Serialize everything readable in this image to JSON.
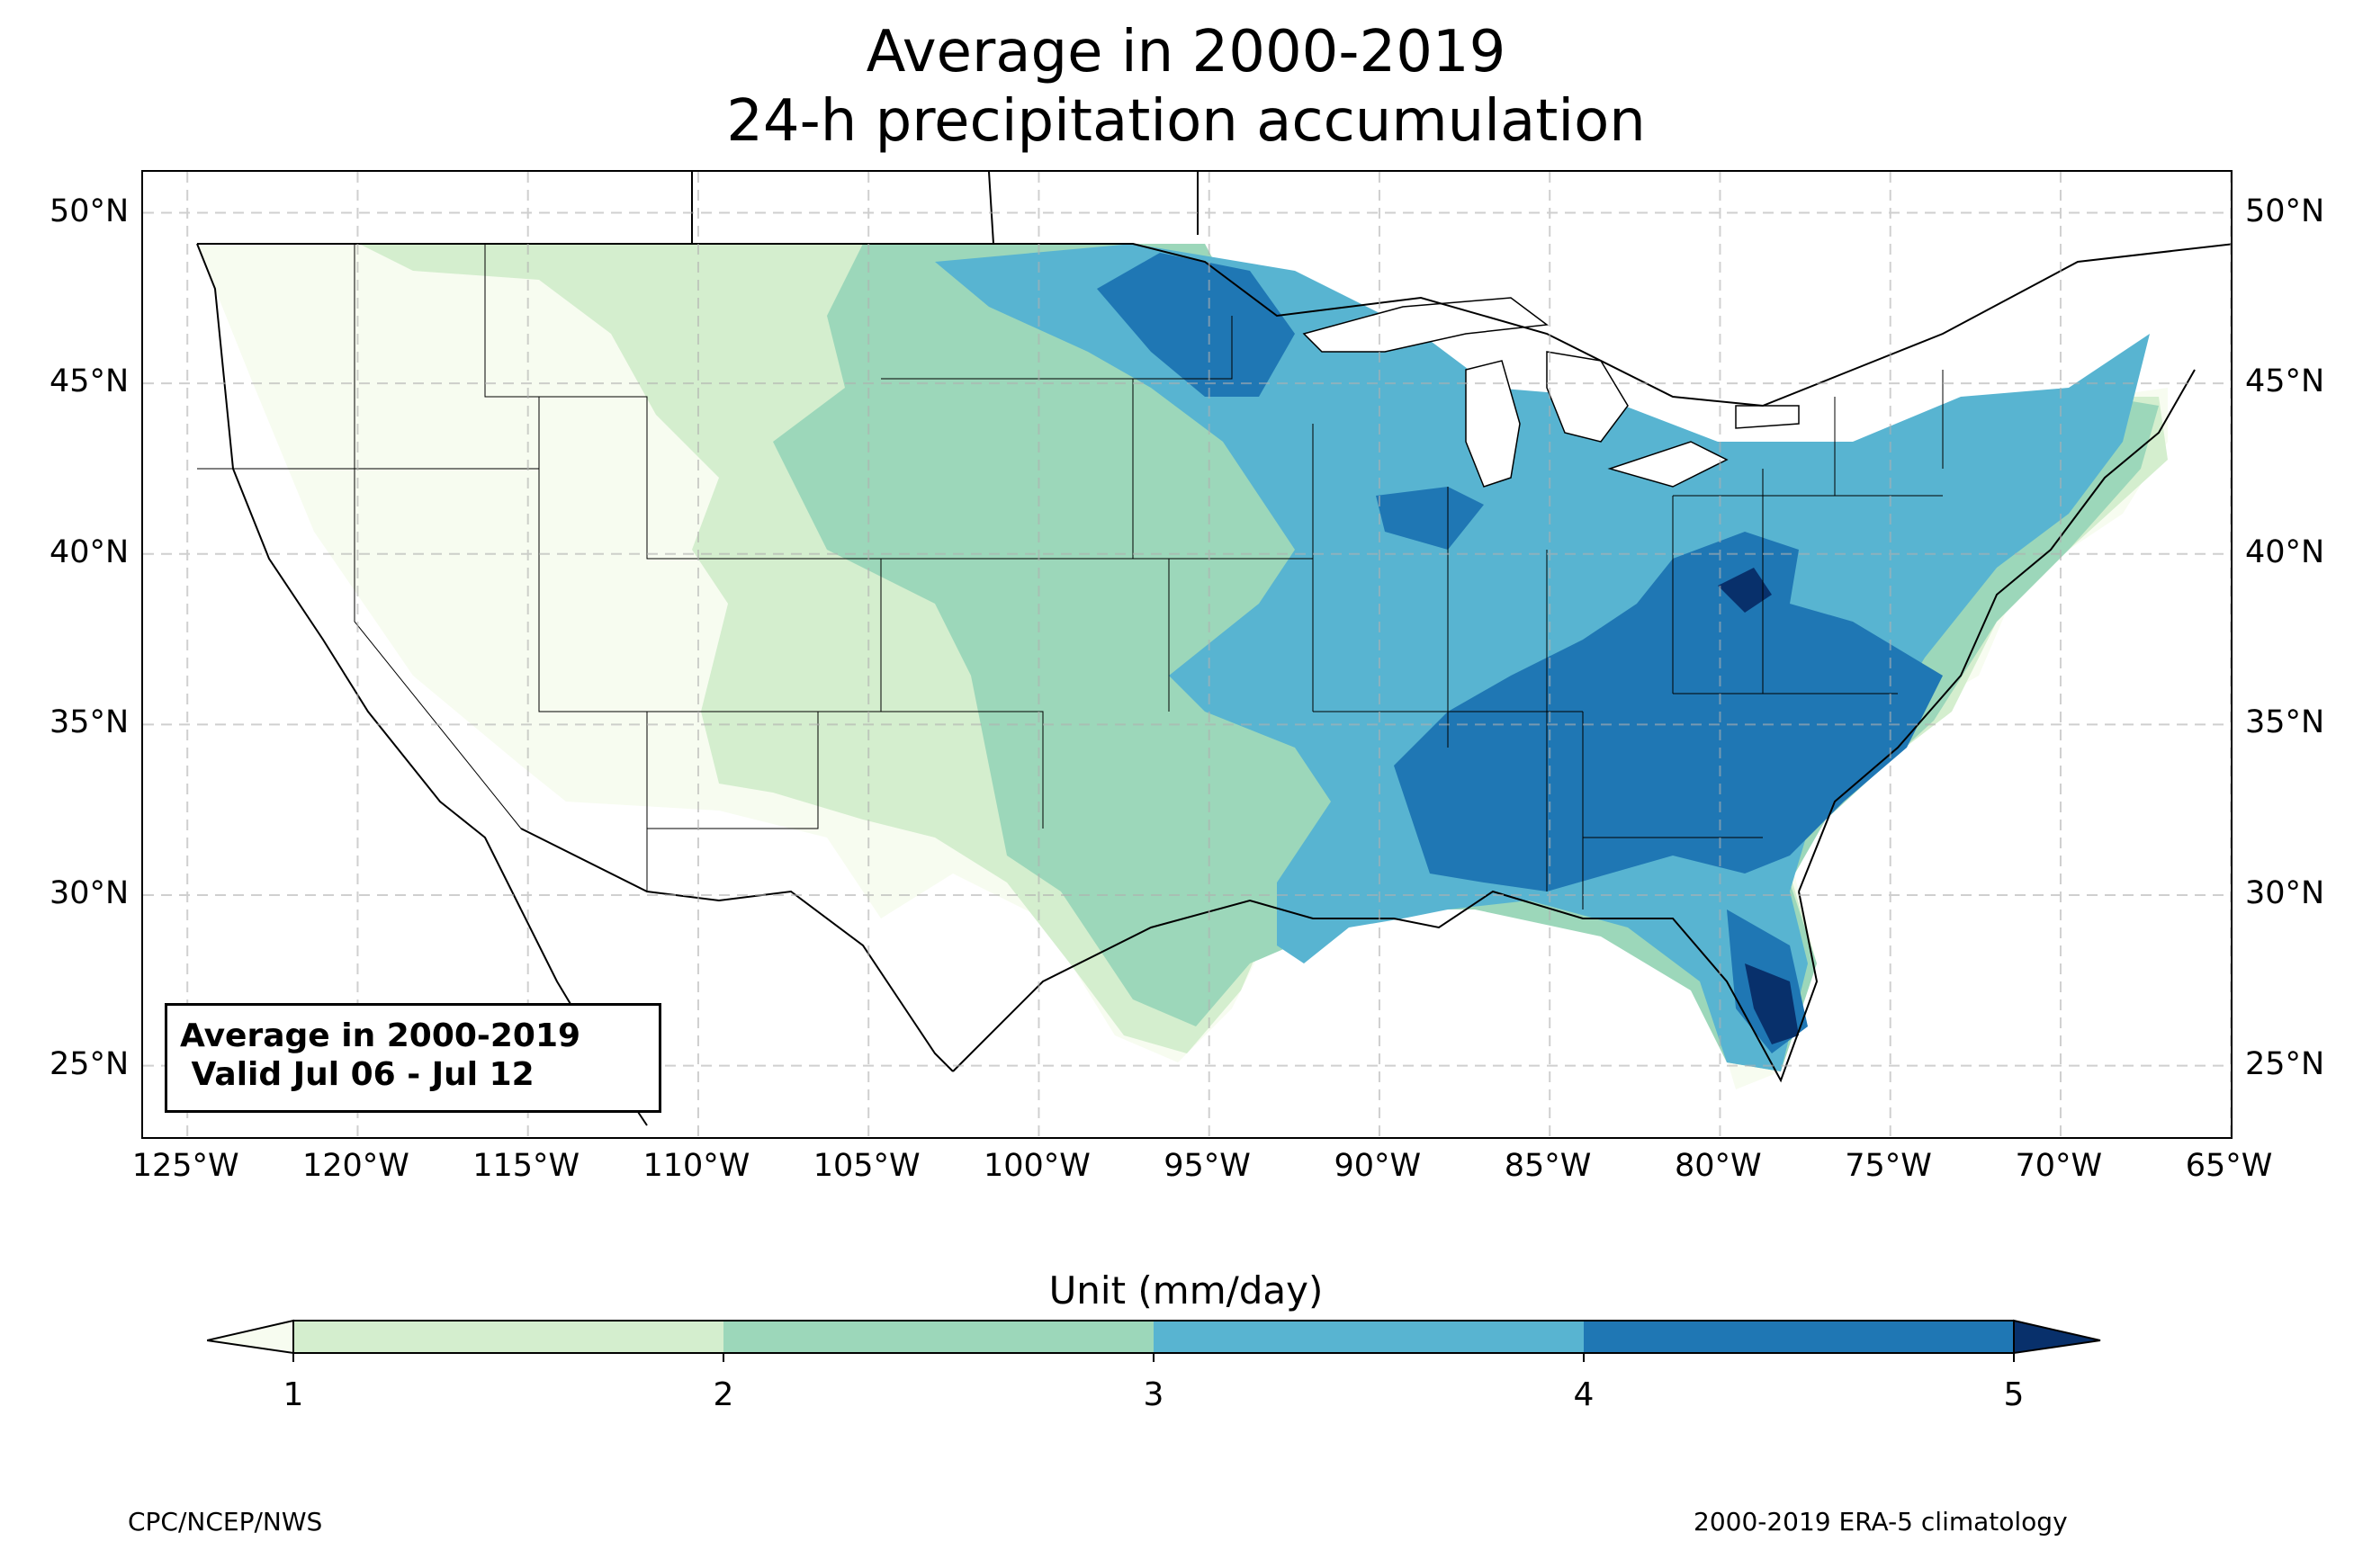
{
  "title": {
    "line1": "Average in 2000-2019",
    "line2": "24-h precipitation accumulation"
  },
  "map": {
    "lon_range": [
      -126.3,
      -64.9
    ],
    "lat_range": [
      22.8,
      51.2
    ],
    "lon_ticks": [
      "125°W",
      "120°W",
      "115°W",
      "110°W",
      "105°W",
      "100°W",
      "95°W",
      "90°W",
      "85°W",
      "80°W",
      "75°W",
      "70°W",
      "65°W"
    ],
    "lat_ticks": [
      "50°N",
      "45°N",
      "40°N",
      "35°N",
      "30°N",
      "25°N"
    ],
    "gridlines": true,
    "field": "24-h precipitation climatology (mm/day)",
    "regions": [
      {
        "name": "west",
        "level": "<1"
      },
      {
        "name": "northern-plains",
        "level": "1-2"
      },
      {
        "name": "central-plains",
        "level": "2-3"
      },
      {
        "name": "upper-midwest",
        "level": "3-4"
      },
      {
        "name": "minnesota-core",
        "level": "4-5"
      },
      {
        "name": "southeast",
        "level": "4-5"
      },
      {
        "name": "south-florida",
        "level": ">5"
      },
      {
        "name": "west-virginia",
        "level": ">5"
      }
    ]
  },
  "info_box": {
    "line1": "Average in 2000-2019",
    "line2": " Valid Jul 06 - Jul 12"
  },
  "colorbar": {
    "title": "Unit (mm/day)",
    "ticks": [
      "1",
      "2",
      "3",
      "4",
      "5"
    ],
    "colors": {
      "under": "#f7fcf0",
      "c1": "#d4eece",
      "c2": "#9cd7ba",
      "c3": "#58b4d1",
      "c4": "#1f77b4",
      "over": "#08306b"
    }
  },
  "footer": {
    "left": "CPC/NCEP/NWS",
    "right": "2000-2019 ERA-5 climatology"
  }
}
